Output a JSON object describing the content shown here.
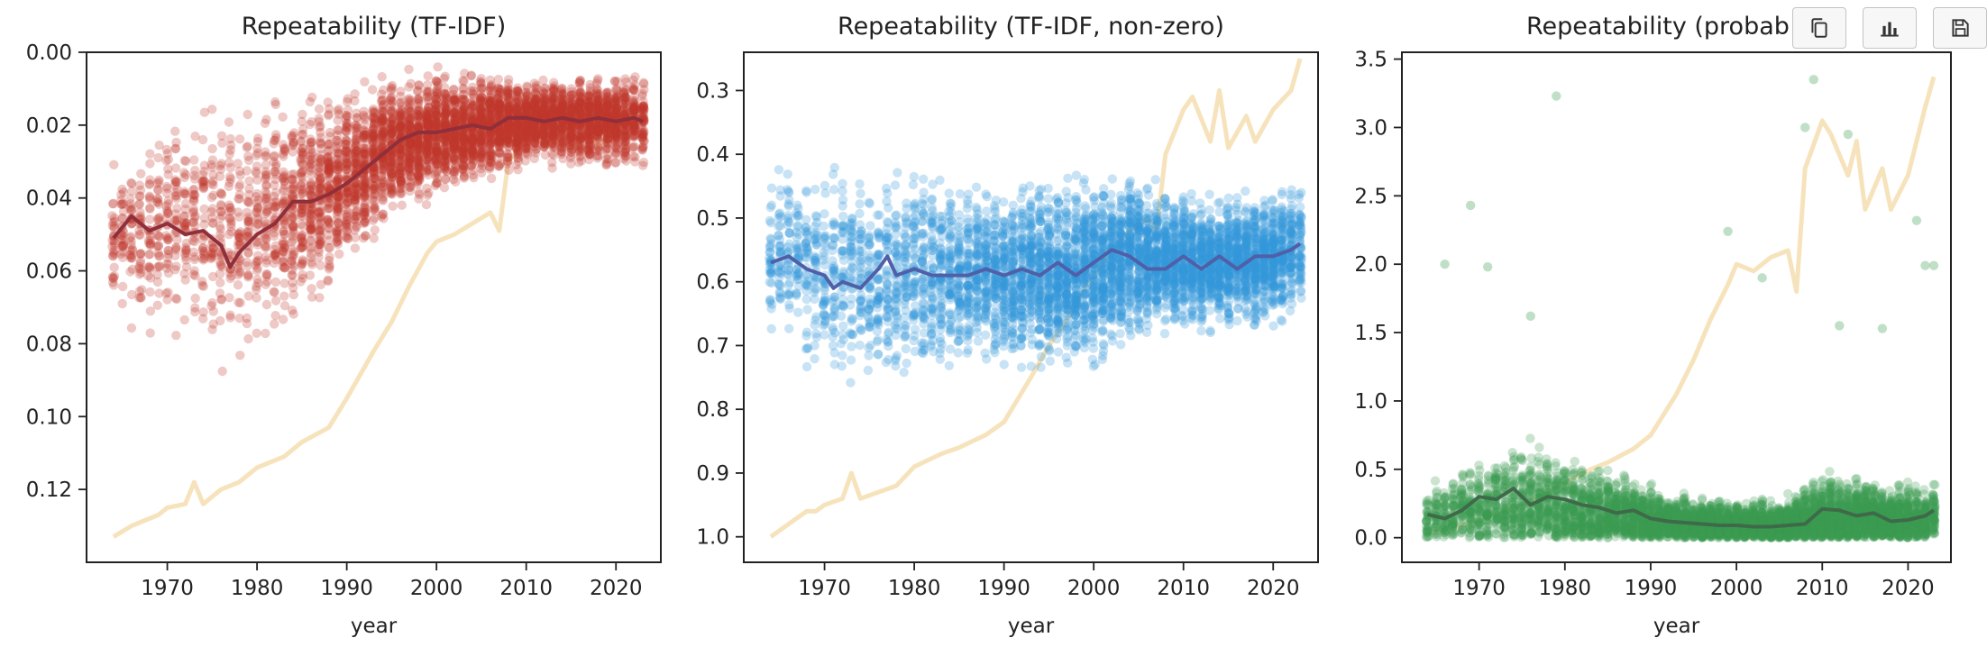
{
  "chart_data": [
    {
      "type": "scatter",
      "title": "Repeatability (TF-IDF)",
      "xlabel": "year",
      "ylabel": "",
      "xlim": [
        1961,
        2025
      ],
      "ylim": [
        0.0,
        0.14
      ],
      "y_inverted": true,
      "xticks": [
        1970,
        1980,
        1990,
        2000,
        2010,
        2020
      ],
      "yticks": [
        0.0,
        0.02,
        0.04,
        0.06,
        0.08,
        0.1,
        0.12
      ],
      "ytick_labels": [
        "0.00",
        "0.02",
        "0.04",
        "0.06",
        "0.08",
        "0.10",
        "0.12"
      ],
      "point_color": "#c0392b",
      "trend_color": "#8e2f3b",
      "background_line_color": "#f5deb0",
      "trend": {
        "x": [
          1964,
          1966,
          1968,
          1970,
          1972,
          1974,
          1976,
          1977,
          1978,
          1980,
          1982,
          1984,
          1986,
          1988,
          1990,
          1992,
          1994,
          1996,
          1998,
          2000,
          2002,
          2004,
          2006,
          2008,
          2010,
          2012,
          2014,
          2016,
          2018,
          2020,
          2022,
          2023
        ],
        "y": [
          0.051,
          0.045,
          0.049,
          0.047,
          0.05,
          0.049,
          0.053,
          0.059,
          0.055,
          0.05,
          0.047,
          0.041,
          0.041,
          0.039,
          0.036,
          0.032,
          0.028,
          0.024,
          0.022,
          0.022,
          0.021,
          0.02,
          0.021,
          0.018,
          0.018,
          0.019,
          0.018,
          0.019,
          0.018,
          0.019,
          0.018,
          0.019
        ]
      },
      "density": {
        "x": [
          1964,
          1970,
          1975,
          1980,
          1985,
          1990,
          1995,
          2000,
          2005,
          2010,
          2015,
          2020,
          2023
        ],
        "center": [
          0.05,
          0.048,
          0.05,
          0.049,
          0.042,
          0.035,
          0.026,
          0.022,
          0.021,
          0.019,
          0.019,
          0.019,
          0.019
        ],
        "spread": [
          0.013,
          0.015,
          0.018,
          0.017,
          0.015,
          0.012,
          0.009,
          0.008,
          0.007,
          0.006,
          0.006,
          0.006,
          0.006
        ],
        "count": [
          30,
          35,
          35,
          40,
          70,
          90,
          110,
          120,
          120,
          120,
          110,
          110,
          60
        ]
      },
      "background_line": {
        "x": [
          1964,
          1966,
          1968,
          1969,
          1970,
          1972,
          1973,
          1974,
          1976,
          1978,
          1980,
          1983,
          1985,
          1988,
          1990,
          1993,
          1995,
          1997,
          1999,
          2000,
          2002,
          2004,
          2006,
          2007,
          2008,
          2010,
          2011,
          2013,
          2014,
          2015,
          2017,
          2018,
          2020,
          2022,
          2023
        ],
        "y": [
          0.133,
          0.13,
          0.128,
          0.127,
          0.125,
          0.124,
          0.118,
          0.124,
          0.12,
          0.118,
          0.114,
          0.111,
          0.107,
          0.103,
          0.095,
          0.082,
          0.074,
          0.064,
          0.055,
          0.052,
          0.05,
          0.047,
          0.044,
          0.049,
          0.03,
          0.024,
          0.019,
          0.026,
          0.018,
          0.027,
          0.021,
          0.026,
          0.021,
          0.017,
          0.015
        ]
      }
    },
    {
      "type": "scatter",
      "title": "Repeatability (TF-IDF, non-zero)",
      "xlabel": "year",
      "ylabel": "",
      "xlim": [
        1961,
        2025
      ],
      "ylim": [
        0.24,
        1.04
      ],
      "y_inverted": true,
      "xticks": [
        1970,
        1980,
        1990,
        2000,
        2010,
        2020
      ],
      "yticks": [
        0.3,
        0.4,
        0.5,
        0.6,
        0.7,
        0.8,
        0.9,
        1.0
      ],
      "ytick_labels": [
        "0.3",
        "0.4",
        "0.5",
        "0.6",
        "0.7",
        "0.8",
        "0.9",
        "1.0"
      ],
      "point_color": "#3498db",
      "trend_color": "#4f5fa8",
      "background_line_color": "#f5deb0",
      "trend": {
        "x": [
          1964,
          1966,
          1968,
          1970,
          1971,
          1972,
          1974,
          1976,
          1977,
          1978,
          1980,
          1982,
          1984,
          1986,
          1988,
          1990,
          1992,
          1994,
          1996,
          1998,
          2000,
          2002,
          2004,
          2006,
          2008,
          2010,
          2012,
          2014,
          2016,
          2018,
          2020,
          2022,
          2023
        ],
        "y": [
          0.57,
          0.56,
          0.58,
          0.59,
          0.61,
          0.6,
          0.61,
          0.58,
          0.56,
          0.59,
          0.58,
          0.59,
          0.59,
          0.59,
          0.58,
          0.59,
          0.58,
          0.59,
          0.57,
          0.59,
          0.57,
          0.55,
          0.56,
          0.58,
          0.58,
          0.56,
          0.58,
          0.56,
          0.58,
          0.56,
          0.56,
          0.55,
          0.54
        ]
      },
      "density": {
        "x": [
          1964,
          1970,
          1975,
          1980,
          1985,
          1990,
          1995,
          2000,
          2005,
          2010,
          2015,
          2020,
          2023
        ],
        "center": [
          0.56,
          0.58,
          0.59,
          0.58,
          0.59,
          0.59,
          0.59,
          0.58,
          0.56,
          0.57,
          0.57,
          0.56,
          0.55
        ],
        "spread": [
          0.07,
          0.08,
          0.08,
          0.08,
          0.07,
          0.07,
          0.07,
          0.07,
          0.06,
          0.05,
          0.05,
          0.05,
          0.05
        ],
        "count": [
          35,
          40,
          45,
          55,
          70,
          90,
          110,
          120,
          120,
          120,
          120,
          120,
          60
        ]
      },
      "background_line": {
        "x": [
          1964,
          1966,
          1968,
          1969,
          1970,
          1972,
          1973,
          1974,
          1976,
          1978,
          1980,
          1983,
          1985,
          1988,
          1990,
          1993,
          1995,
          1997,
          1999,
          2000,
          2002,
          2004,
          2006,
          2007,
          2008,
          2010,
          2011,
          2013,
          2014,
          2015,
          2017,
          2018,
          2020,
          2022,
          2023
        ],
        "y": [
          1.0,
          0.98,
          0.96,
          0.96,
          0.95,
          0.94,
          0.9,
          0.94,
          0.93,
          0.92,
          0.89,
          0.87,
          0.86,
          0.84,
          0.82,
          0.75,
          0.7,
          0.66,
          0.61,
          0.59,
          0.55,
          0.52,
          0.5,
          0.52,
          0.4,
          0.33,
          0.31,
          0.38,
          0.3,
          0.39,
          0.34,
          0.38,
          0.33,
          0.3,
          0.25
        ]
      }
    },
    {
      "type": "scatter",
      "title": "Repeatability (probab",
      "xlabel": "year",
      "ylabel": "",
      "xlim": [
        1961,
        2025
      ],
      "ylim": [
        -0.18,
        3.55
      ],
      "y_inverted": false,
      "xticks": [
        1970,
        1980,
        1990,
        2000,
        2010,
        2020
      ],
      "yticks": [
        0.0,
        0.5,
        1.0,
        1.5,
        2.0,
        2.5,
        3.0,
        3.5
      ],
      "ytick_labels": [
        "0.0",
        "0.5",
        "1.0",
        "1.5",
        "2.0",
        "2.5",
        "3.0",
        "3.5"
      ],
      "point_color": "#3a9a50",
      "trend_color": "#3f6a4a",
      "background_line_color": "#f5deb0",
      "trend": {
        "x": [
          1964,
          1966,
          1968,
          1970,
          1972,
          1974,
          1976,
          1978,
          1980,
          1982,
          1984,
          1986,
          1988,
          1990,
          1992,
          1994,
          1996,
          1998,
          2000,
          2002,
          2004,
          2006,
          2008,
          2010,
          2012,
          2014,
          2016,
          2018,
          2020,
          2022,
          2023
        ],
        "y": [
          0.17,
          0.14,
          0.2,
          0.3,
          0.28,
          0.36,
          0.24,
          0.3,
          0.28,
          0.24,
          0.22,
          0.18,
          0.2,
          0.14,
          0.12,
          0.11,
          0.1,
          0.09,
          0.09,
          0.08,
          0.08,
          0.09,
          0.1,
          0.21,
          0.2,
          0.16,
          0.18,
          0.12,
          0.13,
          0.16,
          0.2
        ]
      },
      "density": {
        "x": [
          1964,
          1970,
          1975,
          1980,
          1985,
          1990,
          1995,
          2000,
          2005,
          2010,
          2015,
          2020,
          2023
        ],
        "center": [
          0.14,
          0.2,
          0.24,
          0.2,
          0.17,
          0.13,
          0.1,
          0.09,
          0.09,
          0.15,
          0.14,
          0.12,
          0.12
        ],
        "spread": [
          0.12,
          0.18,
          0.22,
          0.2,
          0.16,
          0.12,
          0.1,
          0.09,
          0.09,
          0.16,
          0.14,
          0.13,
          0.13
        ],
        "count": [
          35,
          50,
          60,
          70,
          80,
          90,
          100,
          110,
          110,
          120,
          110,
          110,
          60
        ]
      },
      "outliers": {
        "x": [
          1969,
          1971,
          1966,
          1979,
          1999,
          2009,
          2008,
          2003,
          2013,
          2021,
          2022,
          2023,
          2012,
          2017,
          1976
        ],
        "y": [
          2.43,
          1.98,
          2.0,
          3.23,
          2.24,
          3.35,
          3.0,
          1.9,
          2.95,
          2.32,
          1.99,
          1.99,
          1.55,
          1.53,
          1.62
        ]
      },
      "background_line": {
        "x": [
          1964,
          1966,
          1968,
          1970,
          1972,
          1974,
          1976,
          1978,
          1980,
          1983,
          1985,
          1988,
          1990,
          1993,
          1995,
          1997,
          1999,
          2000,
          2002,
          2004,
          2006,
          2007,
          2008,
          2010,
          2011,
          2013,
          2014,
          2015,
          2017,
          2018,
          2020,
          2022,
          2023
        ],
        "y": [
          0.03,
          0.06,
          0.09,
          0.13,
          0.17,
          0.21,
          0.27,
          0.33,
          0.4,
          0.5,
          0.55,
          0.65,
          0.75,
          1.05,
          1.3,
          1.6,
          1.85,
          2.0,
          1.95,
          2.05,
          2.1,
          1.8,
          2.7,
          3.05,
          2.95,
          2.65,
          2.9,
          2.4,
          2.7,
          2.4,
          2.65,
          3.15,
          3.37
        ]
      }
    }
  ],
  "toolbar": {
    "buttons": [
      {
        "icon": "copy-icon"
      },
      {
        "icon": "bar-chart-icon"
      },
      {
        "icon": "save-icon"
      }
    ]
  }
}
